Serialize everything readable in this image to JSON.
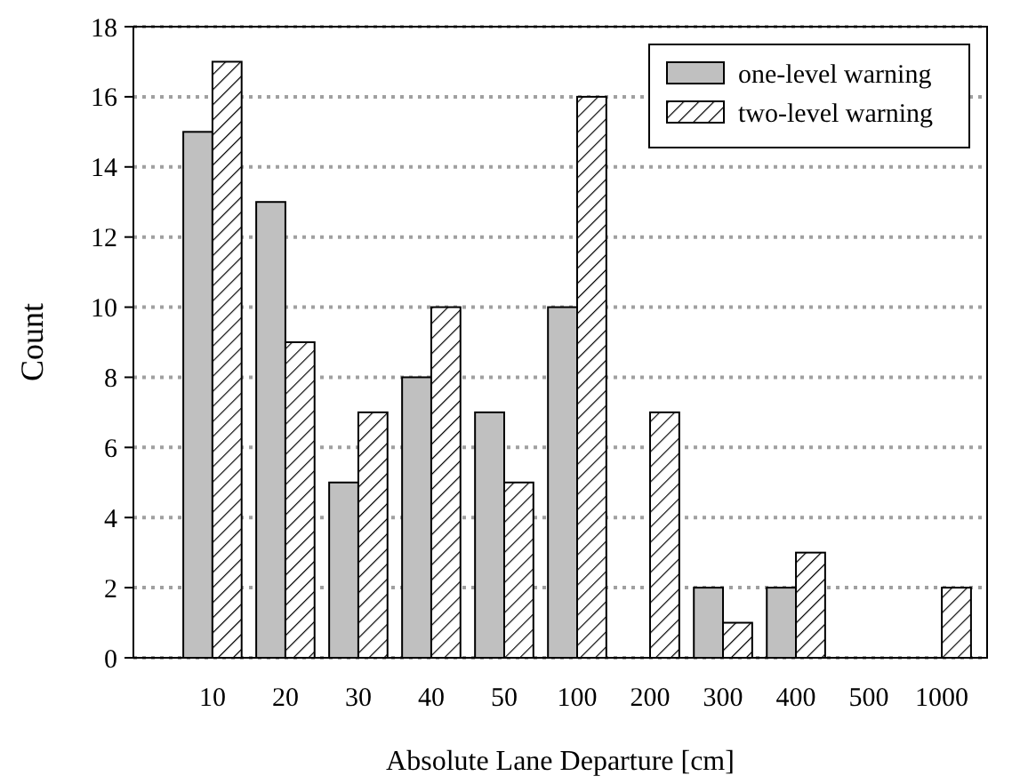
{
  "chart_data": {
    "type": "bar",
    "xlabel": "Absolute Lane Departure [cm]",
    "ylabel": "Count",
    "categories": [
      "10",
      "20",
      "30",
      "40",
      "50",
      "100",
      "200",
      "300",
      "400",
      "500",
      "1000"
    ],
    "series": [
      {
        "name": "one-level warning",
        "color": "#c0c0c0",
        "values": [
          15,
          13,
          5,
          8,
          7,
          10,
          0,
          2,
          2,
          0,
          0
        ]
      },
      {
        "name": "two-level warning",
        "color": "#000000",
        "values": [
          17,
          9,
          7,
          10,
          5,
          16,
          7,
          1,
          3,
          0,
          2
        ]
      }
    ],
    "ylim": [
      0,
      18
    ],
    "yticks": [
      0,
      2,
      4,
      6,
      8,
      10,
      12,
      14,
      16,
      18
    ],
    "grid": "y",
    "legend": "top right"
  }
}
